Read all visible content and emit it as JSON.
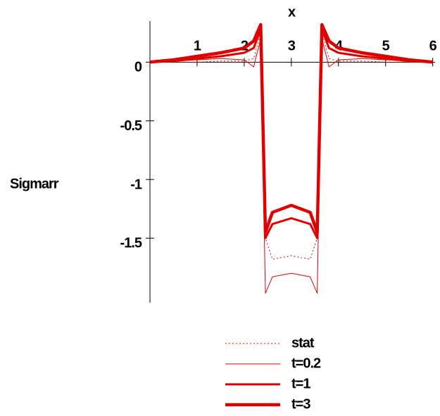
{
  "chart_data": {
    "type": "line",
    "x_label": "x",
    "y_label": "Sigmarr",
    "x": [
      0,
      0.5,
      1,
      1.5,
      2,
      2.2,
      2.35,
      2.45,
      2.6,
      3,
      3.4,
      3.55,
      3.65,
      3.8,
      4,
      4.5,
      5,
      5.5,
      6
    ],
    "series": [
      {
        "name": "stat",
        "color": "#e00000",
        "dash": "dotted",
        "line_width": 1,
        "values": [
          0,
          0,
          0,
          0.01,
          0.01,
          0.03,
          0.25,
          -1.5,
          -1.68,
          -1.65,
          -1.68,
          -1.5,
          0.25,
          0.03,
          0.01,
          0.01,
          0,
          0,
          0
        ]
      },
      {
        "name": "t=0.2",
        "color": "#e00000",
        "dash": "solid",
        "line_width": 1,
        "values": [
          0,
          0.01,
          0.02,
          0.03,
          0.02,
          -0.04,
          0.2,
          -1.97,
          -1.83,
          -1.8,
          -1.83,
          -1.97,
          0.2,
          -0.04,
          0.02,
          0.03,
          0.02,
          0.01,
          0
        ]
      },
      {
        "name": "t=1",
        "color": "#e00000",
        "dash": "solid",
        "line_width": 3,
        "values": [
          0,
          0.01,
          0.03,
          0.05,
          0.08,
          0.12,
          0.28,
          -1.5,
          -1.38,
          -1.33,
          -1.38,
          -1.5,
          0.28,
          0.12,
          0.08,
          0.05,
          0.03,
          0.01,
          0
        ]
      },
      {
        "name": "t=3",
        "color": "#e00000",
        "dash": "solid",
        "line_width": 4.5,
        "values": [
          0,
          0.02,
          0.05,
          0.08,
          0.12,
          0.18,
          0.32,
          -1.45,
          -1.28,
          -1.22,
          -1.28,
          -1.45,
          0.32,
          0.18,
          0.12,
          0.08,
          0.05,
          0.02,
          0
        ]
      }
    ],
    "xlim": [
      0,
      6.05
    ],
    "ylim": [
      -2.05,
      0.35
    ],
    "xticks": [
      1,
      2,
      3,
      4,
      5,
      6
    ],
    "yticks": [
      0,
      -0.5,
      -1,
      -1.5
    ],
    "legend": "bottom"
  }
}
